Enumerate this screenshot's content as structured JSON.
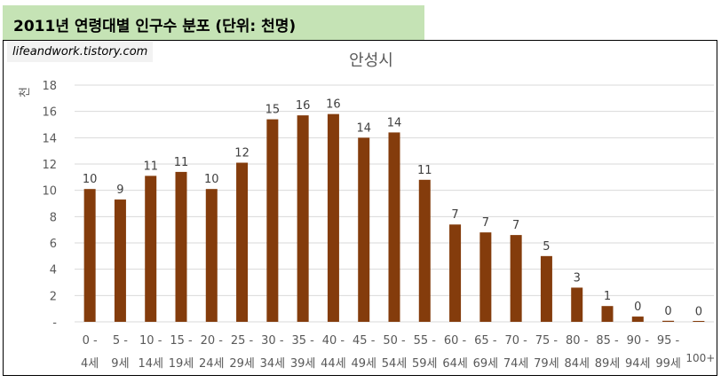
{
  "header": {
    "title": "2011년 연령대별 인구수 분포 (단위: 천명)"
  },
  "watermark": "lifeandwork.tistory.com",
  "colors": {
    "bar": "#843c0c",
    "grid": "#d9d9d9",
    "axis_text": "#595959",
    "header_bg": "#c5e3b5"
  },
  "chart_data": {
    "type": "bar",
    "title": "안성시",
    "ylabel": "천",
    "xlabel": "",
    "ylim": [
      0,
      18
    ],
    "yticks": [
      0,
      2,
      4,
      6,
      8,
      10,
      12,
      14,
      16,
      18
    ],
    "yticks_labels": [
      "-",
      "2",
      "4",
      "6",
      "8",
      "10",
      "12",
      "14",
      "16",
      "18"
    ],
    "grid": true,
    "legend": "none",
    "categories": [
      [
        "0 -",
        "4세"
      ],
      [
        "5 -",
        "9세"
      ],
      [
        "10 -",
        "14세"
      ],
      [
        "15 -",
        "19세"
      ],
      [
        "20 -",
        "24세"
      ],
      [
        "25 -",
        "29세"
      ],
      [
        "30 -",
        "34세"
      ],
      [
        "35 -",
        "39세"
      ],
      [
        "40 -",
        "44세"
      ],
      [
        "45 -",
        "49세"
      ],
      [
        "50 -",
        "54세"
      ],
      [
        "55 -",
        "59세"
      ],
      [
        "60 -",
        "64세"
      ],
      [
        "65 -",
        "69세"
      ],
      [
        "70 -",
        "74세"
      ],
      [
        "75 -",
        "79세"
      ],
      [
        "80 -",
        "84세"
      ],
      [
        "85 -",
        "89세"
      ],
      [
        "90 -",
        "94세"
      ],
      [
        "95 -",
        "99세"
      ],
      [
        "100+"
      ]
    ],
    "values": [
      10.1,
      9.3,
      11.1,
      11.4,
      10.1,
      12.1,
      15.4,
      15.7,
      15.8,
      14.0,
      14.4,
      10.8,
      7.4,
      6.8,
      6.6,
      5.0,
      2.6,
      1.2,
      0.4,
      0.08,
      0.04
    ],
    "data_labels": [
      "10",
      "9",
      "11",
      "11",
      "10",
      "12",
      "15",
      "16",
      "16",
      "14",
      "14",
      "11",
      "7",
      "7",
      "7",
      "5",
      "3",
      "1",
      "0",
      "0",
      "0"
    ]
  }
}
